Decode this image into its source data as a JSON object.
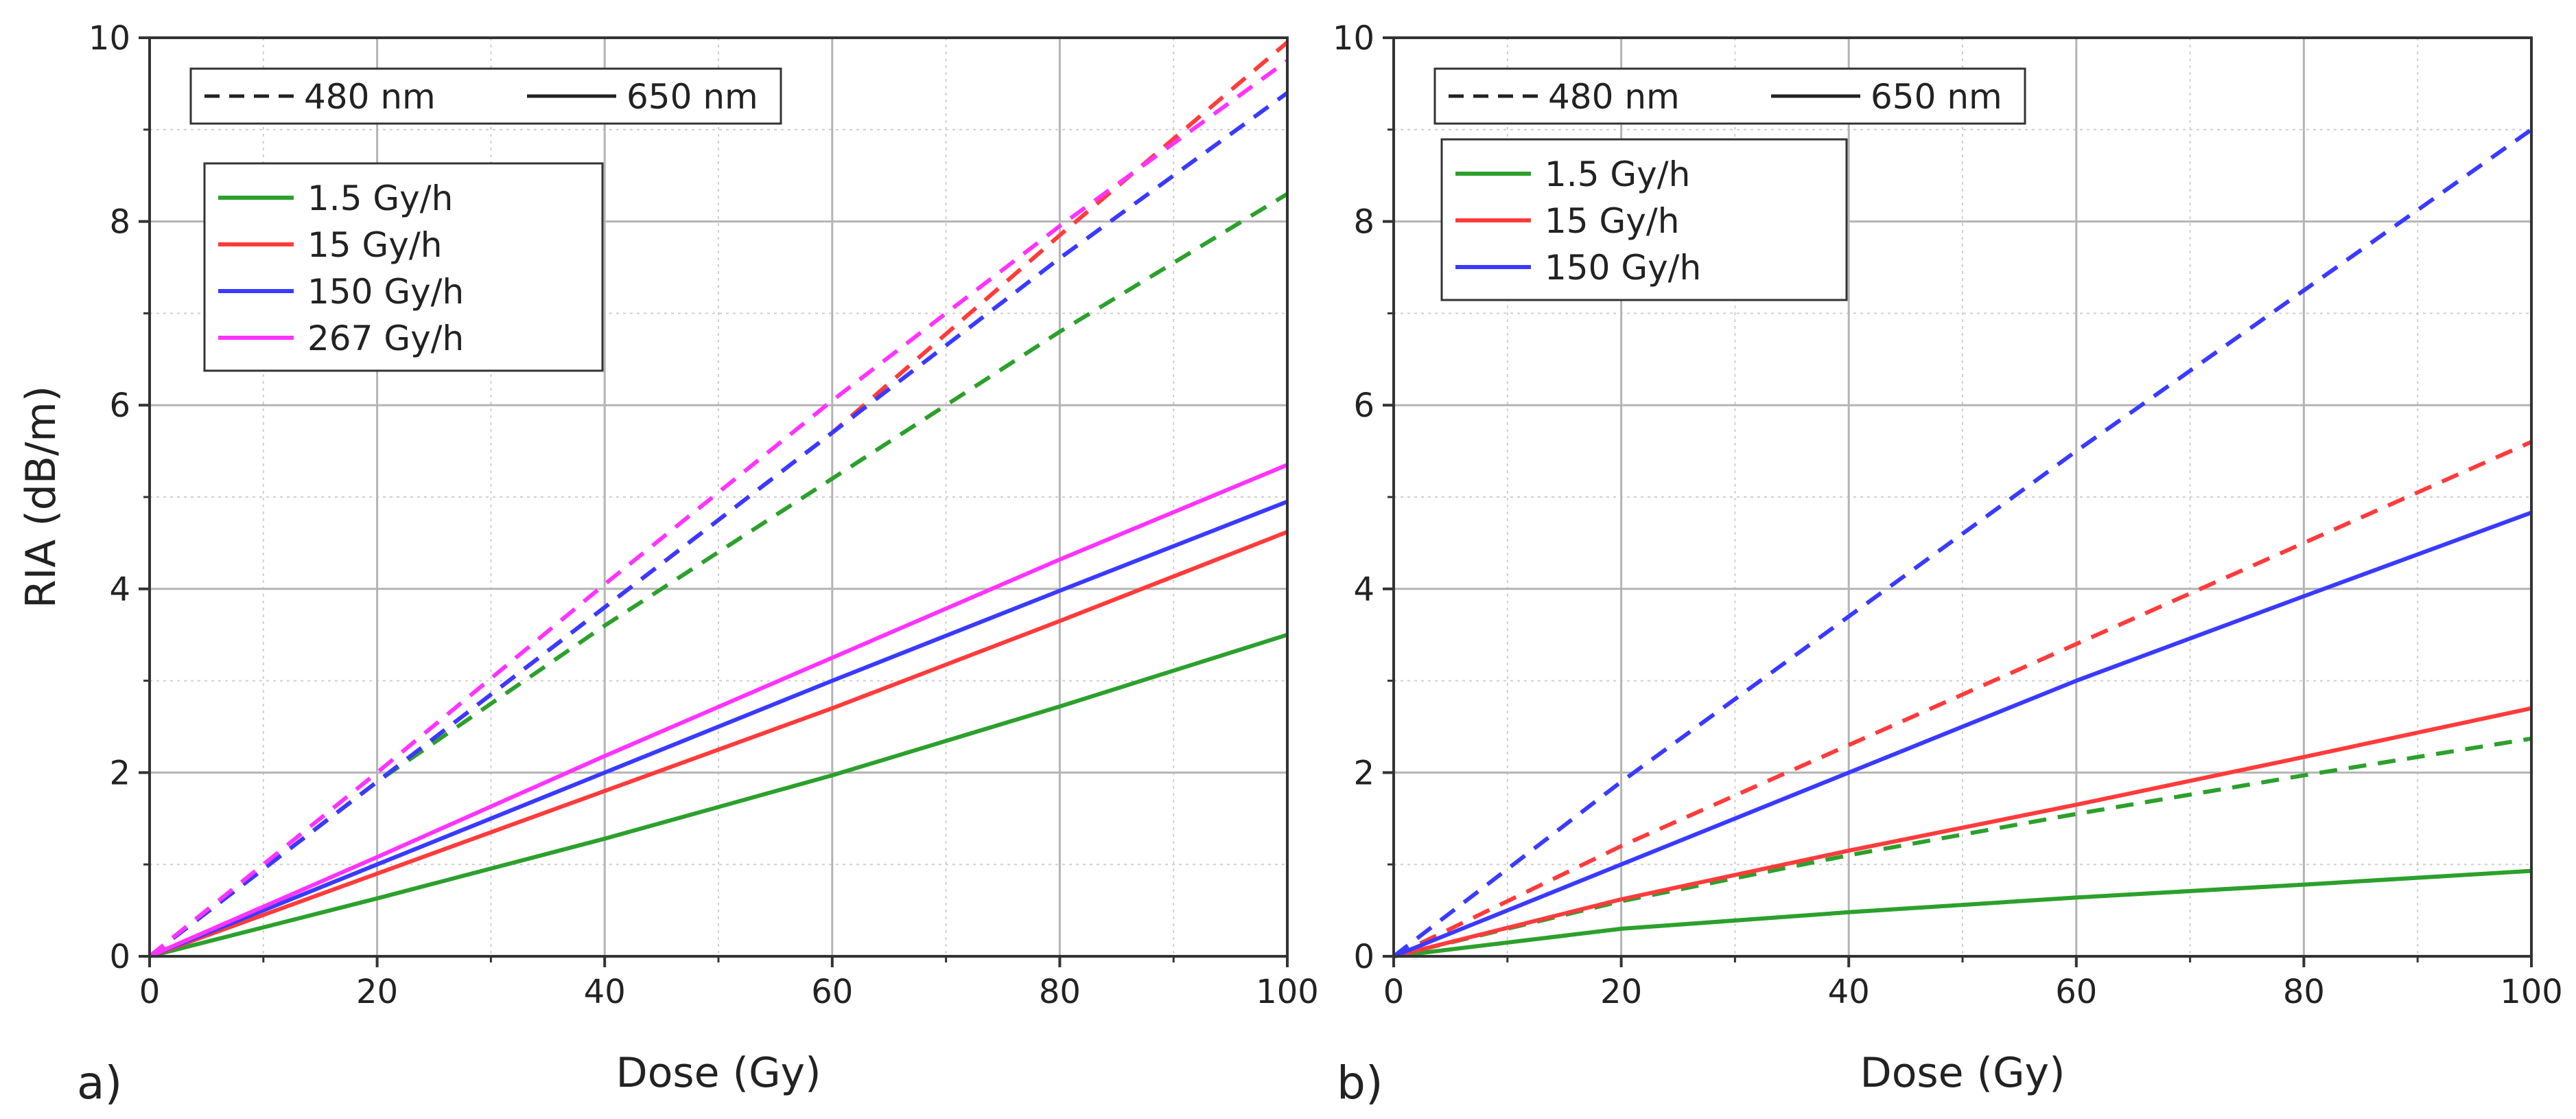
{
  "chart_data": [
    {
      "type": "line",
      "panel_label": "a)",
      "xlabel": "Dose (Gy)",
      "ylabel": "RIA (dB/m)",
      "xlim": [
        0,
        100
      ],
      "ylim": [
        0,
        10
      ],
      "x_ticks": [
        0,
        20,
        40,
        60,
        80,
        100
      ],
      "y_ticks": [
        0,
        2,
        4,
        6,
        8,
        10
      ],
      "grid": true,
      "style_legend": {
        "placement": "top-left",
        "entries": [
          {
            "label": "480 nm",
            "dash": "dashed"
          },
          {
            "label": "650 nm",
            "dash": "solid"
          }
        ]
      },
      "color_legend": {
        "placement": "upper-left",
        "entries": [
          "1.5 Gy/h",
          "15 Gy/h",
          "150 Gy/h",
          "267 Gy/h"
        ]
      },
      "series": [
        {
          "name": "1.5 Gy/h",
          "wavelength": "480 nm",
          "color": "#2ca02c",
          "dash": "dashed",
          "x": [
            0,
            20,
            40,
            60,
            80,
            100
          ],
          "y": [
            0,
            1.9,
            3.6,
            5.2,
            6.8,
            8.3
          ]
        },
        {
          "name": "15 Gy/h",
          "wavelength": "480 nm",
          "color": "#ff3b3b",
          "dash": "dashed",
          "x": [
            0,
            20,
            40,
            60,
            80,
            100
          ],
          "y": [
            0,
            1.9,
            3.8,
            5.7,
            7.85,
            9.95
          ]
        },
        {
          "name": "150 Gy/h",
          "wavelength": "480 nm",
          "color": "#3a3aff",
          "dash": "dashed",
          "x": [
            0,
            20,
            40,
            60,
            80,
            100
          ],
          "y": [
            0,
            1.9,
            3.8,
            5.7,
            7.6,
            9.4
          ]
        },
        {
          "name": "267 Gy/h",
          "wavelength": "480 nm",
          "color": "#ff33ff",
          "dash": "dashed",
          "x": [
            0,
            20,
            40,
            60,
            80,
            100
          ],
          "y": [
            0,
            2.0,
            4.05,
            6.05,
            7.95,
            9.75
          ]
        },
        {
          "name": "1.5 Gy/h",
          "wavelength": "650 nm",
          "color": "#2ca02c",
          "dash": "solid",
          "x": [
            0,
            20,
            40,
            60,
            80,
            100
          ],
          "y": [
            0,
            0.63,
            1.28,
            1.97,
            2.72,
            3.5
          ]
        },
        {
          "name": "15 Gy/h",
          "wavelength": "650 nm",
          "color": "#ff3b3b",
          "dash": "solid",
          "x": [
            0,
            20,
            40,
            60,
            80,
            100
          ],
          "y": [
            0,
            0.9,
            1.8,
            2.7,
            3.65,
            4.62
          ]
        },
        {
          "name": "150 Gy/h",
          "wavelength": "650 nm",
          "color": "#3a3aff",
          "dash": "solid",
          "x": [
            0,
            20,
            40,
            60,
            80,
            100
          ],
          "y": [
            0,
            1.0,
            2.0,
            3.0,
            3.98,
            4.95
          ]
        },
        {
          "name": "267 Gy/h",
          "wavelength": "650 nm",
          "color": "#ff33ff",
          "dash": "solid",
          "x": [
            0,
            20,
            40,
            60,
            80,
            100
          ],
          "y": [
            0,
            1.08,
            2.18,
            3.25,
            4.32,
            5.35
          ]
        }
      ]
    },
    {
      "type": "line",
      "panel_label": "b)",
      "xlabel": "Dose (Gy)",
      "ylabel": "",
      "xlim": [
        0,
        100
      ],
      "ylim": [
        0,
        10
      ],
      "x_ticks": [
        0,
        20,
        40,
        60,
        80,
        100
      ],
      "y_ticks": [
        0,
        2,
        4,
        6,
        8,
        10
      ],
      "grid": true,
      "style_legend": {
        "placement": "top-left",
        "entries": [
          {
            "label": "480 nm",
            "dash": "dashed"
          },
          {
            "label": "650 nm",
            "dash": "solid"
          }
        ]
      },
      "color_legend": {
        "placement": "upper-left",
        "entries": [
          "1.5 Gy/h",
          "15 Gy/h",
          "150 Gy/h"
        ]
      },
      "series": [
        {
          "name": "1.5 Gy/h",
          "wavelength": "480 nm",
          "color": "#2ca02c",
          "dash": "dashed",
          "x": [
            0,
            20,
            40,
            60,
            80,
            100
          ],
          "y": [
            0,
            0.6,
            1.1,
            1.55,
            1.97,
            2.37
          ]
        },
        {
          "name": "15 Gy/h",
          "wavelength": "480 nm",
          "color": "#ff3b3b",
          "dash": "dashed",
          "x": [
            0,
            20,
            40,
            60,
            80,
            100
          ],
          "y": [
            0,
            1.2,
            2.3,
            3.4,
            4.5,
            5.6
          ]
        },
        {
          "name": "150 Gy/h",
          "wavelength": "480 nm",
          "color": "#3a3aff",
          "dash": "dashed",
          "x": [
            0,
            20,
            40,
            60,
            80,
            100
          ],
          "y": [
            0,
            1.9,
            3.7,
            5.5,
            7.25,
            9.0
          ]
        },
        {
          "name": "1.5 Gy/h",
          "wavelength": "650 nm",
          "color": "#2ca02c",
          "dash": "solid",
          "x": [
            0,
            20,
            40,
            60,
            80,
            100
          ],
          "y": [
            0,
            0.3,
            0.48,
            0.64,
            0.78,
            0.93
          ]
        },
        {
          "name": "15 Gy/h",
          "wavelength": "650 nm",
          "color": "#ff3b3b",
          "dash": "solid",
          "x": [
            0,
            20,
            40,
            60,
            80,
            100
          ],
          "y": [
            0,
            0.62,
            1.15,
            1.65,
            2.17,
            2.7
          ]
        },
        {
          "name": "150 Gy/h",
          "wavelength": "650 nm",
          "color": "#3a3aff",
          "dash": "solid",
          "x": [
            0,
            20,
            40,
            60,
            80,
            100
          ],
          "y": [
            0,
            1.0,
            2.0,
            3.0,
            3.92,
            4.83
          ]
        }
      ]
    }
  ]
}
